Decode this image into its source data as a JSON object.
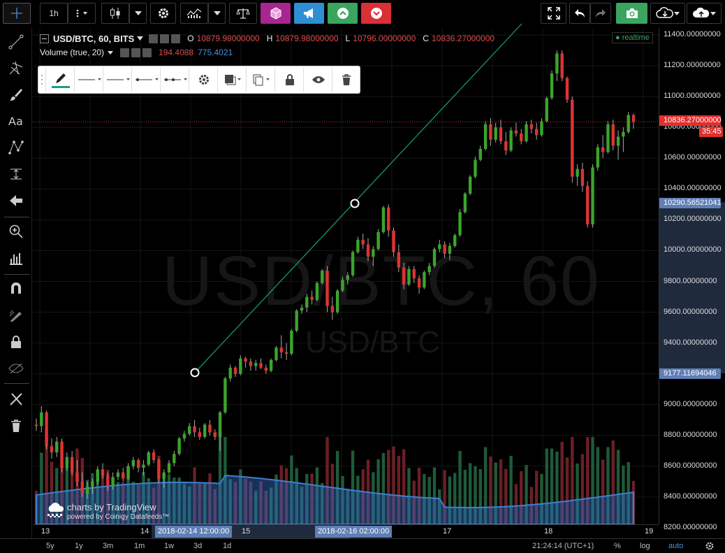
{
  "toolbar": {
    "interval_label": "1h",
    "accent_violet": "#a7268f",
    "accent_blue": "#2f8fd5",
    "accent_green": "#3aa55f",
    "accent_red": "#d93036"
  },
  "legend": {
    "symbol": "USD/BTC, 60, BITS",
    "o_label": "O",
    "o_value": "10879.98000000",
    "h_label": "H",
    "h_value": "10879.98000000",
    "l_label": "L",
    "l_value": "10796.00000000",
    "c_label": "C",
    "c_value": "10836.27000000",
    "volume_label": "Volume (true, 20)",
    "volume_value": "194.4088",
    "volume_ma": "775.4021",
    "realtime": "realtime"
  },
  "watermark": {
    "main": "USD/BTC, 60",
    "sub": "USD/BTC"
  },
  "branding": {
    "line1": "charts by TradingView",
    "line2": "powered by Coinigy Datafeeds™"
  },
  "price_axis": {
    "labels": [
      "11400.00000000",
      "11200.00000000",
      "11000.00000000",
      "10800.00000000",
      "10600.00000000",
      "10400.00000000",
      "10200.00000000",
      "10000.00000000",
      "9800.00000000",
      "9600.00000000",
      "9400.00000000",
      "9200.00000000",
      "9000.00000000",
      "8800.00000000",
      "8600.00000000",
      "8400.00000000",
      "8200.00000000"
    ],
    "last_price": "10836.27000000",
    "countdown": "35:45",
    "range_top": "10290.56521041",
    "range_bottom": "9177.11694046"
  },
  "time_axis": {
    "labels": [
      "13",
      "14",
      "15",
      "17",
      "18",
      "19"
    ],
    "marker_left": "2018-02-14 12:00:00",
    "marker_right": "2018-02-16 02:00:00"
  },
  "bottom_bar": {
    "ranges": [
      "5y",
      "1y",
      "3m",
      "1m",
      "1w",
      "3d",
      "1d"
    ],
    "clock": "21:24:14 (UTC+1)",
    "percent": "%",
    "log": "log",
    "auto": "auto"
  },
  "chart_data": {
    "type": "candlestick",
    "price_min": 8150,
    "price_max": 11500,
    "candles": [
      [
        8870,
        8910,
        8830,
        8860
      ],
      [
        8860,
        8990,
        8820,
        8950
      ],
      [
        8950,
        8960,
        8710,
        8730
      ],
      [
        8730,
        8780,
        8650,
        8690
      ],
      [
        8690,
        8790,
        8660,
        8760
      ],
      [
        8760,
        8780,
        8560,
        8590
      ],
      [
        8590,
        8690,
        8570,
        8660
      ],
      [
        8660,
        8700,
        8540,
        8560
      ],
      [
        8560,
        8640,
        8470,
        8500
      ],
      [
        8500,
        8560,
        8400,
        8420
      ],
      [
        8420,
        8500,
        8390,
        8470
      ],
      [
        8470,
        8520,
        8420,
        8500
      ],
      [
        8500,
        8600,
        8480,
        8580
      ],
      [
        8580,
        8620,
        8520,
        8540
      ],
      [
        8540,
        8560,
        8440,
        8470
      ],
      [
        8470,
        8560,
        8450,
        8530
      ],
      [
        8530,
        8580,
        8510,
        8560
      ],
      [
        8560,
        8590,
        8500,
        8520
      ],
      [
        8520,
        8620,
        8510,
        8600
      ],
      [
        8600,
        8660,
        8580,
        8640
      ],
      [
        8640,
        8650,
        8560,
        8590
      ],
      [
        8590,
        8640,
        8540,
        8610
      ],
      [
        8610,
        8700,
        8600,
        8690
      ],
      [
        8690,
        8710,
        8620,
        8640
      ],
      [
        8640,
        8650,
        8490,
        8520
      ],
      [
        8520,
        8580,
        8460,
        8560
      ],
      [
        8560,
        8640,
        8550,
        8620
      ],
      [
        8620,
        8700,
        8600,
        8680
      ],
      [
        8680,
        8790,
        8670,
        8780
      ],
      [
        8780,
        8830,
        8760,
        8810
      ],
      [
        8810,
        8880,
        8800,
        8860
      ],
      [
        8860,
        8900,
        8790,
        8820
      ],
      [
        8820,
        8850,
        8770,
        8790
      ],
      [
        8790,
        8880,
        8780,
        8870
      ],
      [
        8870,
        8900,
        8800,
        8820
      ],
      [
        8820,
        8840,
        8770,
        8790
      ],
      [
        8790,
        8960,
        8700,
        8950
      ],
      [
        8950,
        9180,
        8940,
        9170
      ],
      [
        9170,
        9260,
        9150,
        9240
      ],
      [
        9240,
        9250,
        9180,
        9200
      ],
      [
        9200,
        9320,
        9190,
        9300
      ],
      [
        9300,
        9310,
        9240,
        9280
      ],
      [
        9280,
        9300,
        9220,
        9250
      ],
      [
        9250,
        9290,
        9220,
        9270
      ],
      [
        9270,
        9300,
        9230,
        9240
      ],
      [
        9240,
        9260,
        9200,
        9220
      ],
      [
        9220,
        9300,
        9210,
        9290
      ],
      [
        9290,
        9380,
        9280,
        9370
      ],
      [
        9370,
        9450,
        9300,
        9340
      ],
      [
        9340,
        9400,
        9290,
        9330
      ],
      [
        9330,
        9490,
        9320,
        9480
      ],
      [
        9480,
        9620,
        9470,
        9610
      ],
      [
        9610,
        9650,
        9590,
        9630
      ],
      [
        9630,
        9720,
        9600,
        9700
      ],
      [
        9700,
        9740,
        9650,
        9680
      ],
      [
        9680,
        9800,
        9670,
        9790
      ],
      [
        9790,
        9880,
        9780,
        9870
      ],
      [
        9870,
        9900,
        9600,
        9640
      ],
      [
        9640,
        9700,
        9550,
        9600
      ],
      [
        9600,
        9750,
        9590,
        9740
      ],
      [
        9740,
        9830,
        9730,
        9810
      ],
      [
        9810,
        9860,
        9780,
        9840
      ],
      [
        9840,
        10000,
        9830,
        9990
      ],
      [
        9990,
        10090,
        9980,
        10070
      ],
      [
        10070,
        10110,
        10010,
        10040
      ],
      [
        10040,
        10080,
        9930,
        9960
      ],
      [
        9960,
        10030,
        9900,
        10010
      ],
      [
        10010,
        10140,
        10000,
        10120
      ],
      [
        10120,
        10290,
        10110,
        10280
      ],
      [
        10280,
        10300,
        10090,
        10130
      ],
      [
        10130,
        10150,
        9960,
        9990
      ],
      [
        9990,
        10040,
        9860,
        9890
      ],
      [
        9890,
        9920,
        9750,
        9780
      ],
      [
        9780,
        9900,
        9770,
        9880
      ],
      [
        9880,
        9900,
        9790,
        9820
      ],
      [
        9820,
        9840,
        9720,
        9760
      ],
      [
        9760,
        9870,
        9750,
        9860
      ],
      [
        9860,
        9920,
        9840,
        9900
      ],
      [
        9900,
        10020,
        9890,
        10010
      ],
      [
        10010,
        10070,
        9990,
        10040
      ],
      [
        10040,
        10060,
        9950,
        9980
      ],
      [
        9980,
        10050,
        9940,
        10030
      ],
      [
        10030,
        10110,
        10020,
        10100
      ],
      [
        10100,
        10270,
        10090,
        10250
      ],
      [
        10250,
        10380,
        10240,
        10370
      ],
      [
        10370,
        10490,
        10360,
        10480
      ],
      [
        10480,
        10610,
        10470,
        10590
      ],
      [
        10590,
        10680,
        10580,
        10660
      ],
      [
        10660,
        10840,
        10650,
        10820
      ],
      [
        10820,
        10860,
        10680,
        10720
      ],
      [
        10720,
        10830,
        10700,
        10800
      ],
      [
        10800,
        10850,
        10690,
        10710
      ],
      [
        10710,
        10770,
        10620,
        10650
      ],
      [
        10650,
        10800,
        10640,
        10780
      ],
      [
        10780,
        10830,
        10740,
        10760
      ],
      [
        10760,
        10790,
        10690,
        10710
      ],
      [
        10710,
        10840,
        10700,
        10820
      ],
      [
        10820,
        10850,
        10760,
        10790
      ],
      [
        10790,
        10830,
        10720,
        10750
      ],
      [
        10750,
        10860,
        10740,
        10840
      ],
      [
        10840,
        11000,
        10830,
        10990
      ],
      [
        10990,
        11170,
        10980,
        11150
      ],
      [
        11150,
        11300,
        11100,
        11280
      ],
      [
        11280,
        11300,
        11100,
        11120
      ],
      [
        11120,
        11130,
        10960,
        10980
      ],
      [
        10980,
        11000,
        10440,
        10480
      ],
      [
        10480,
        10560,
        10420,
        10530
      ],
      [
        10530,
        10570,
        10380,
        10420
      ],
      [
        10420,
        10450,
        10150,
        10170
      ],
      [
        10170,
        10560,
        10150,
        10540
      ],
      [
        10540,
        10690,
        10520,
        10670
      ],
      [
        10670,
        10750,
        10600,
        10640
      ],
      [
        10640,
        10840,
        10630,
        10820
      ],
      [
        10820,
        10850,
        10650,
        10680
      ],
      [
        10680,
        10780,
        10590,
        10740
      ],
      [
        10740,
        10800,
        10640,
        10770
      ],
      [
        10770,
        10900,
        10760,
        10880
      ],
      [
        10880,
        10890,
        10790,
        10836
      ]
    ],
    "volume_ma_line": "smoothed moving average of volume"
  }
}
